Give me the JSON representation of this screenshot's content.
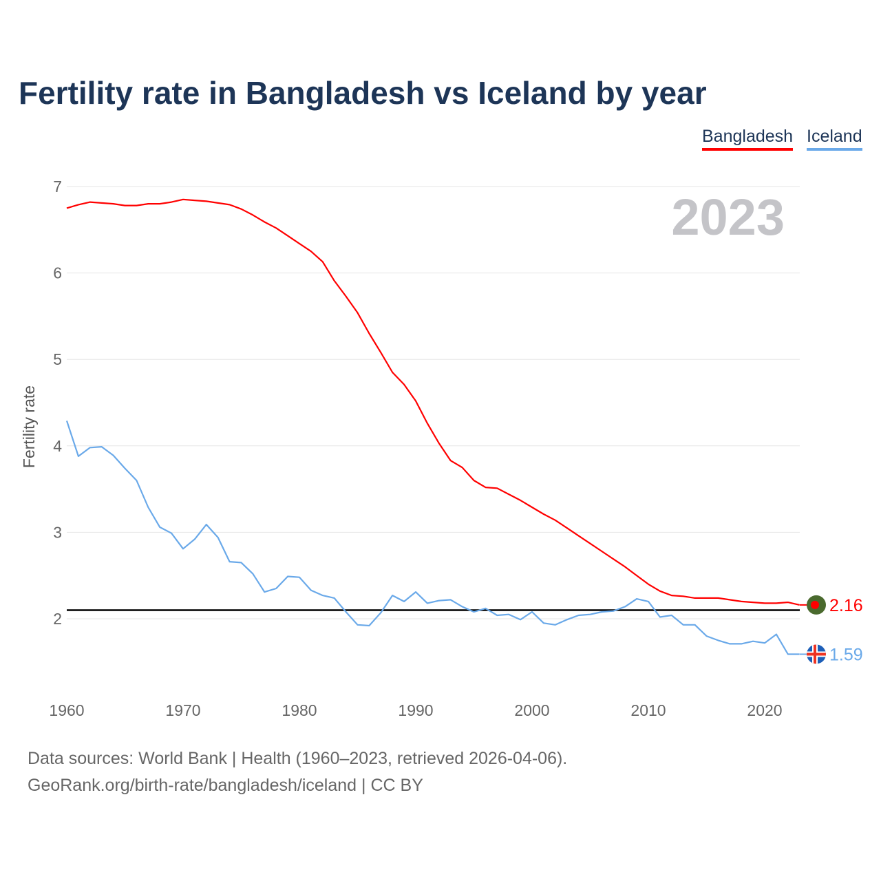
{
  "chart_data": {
    "type": "line",
    "title": "Fertility rate in Bangladesh vs Iceland by year",
    "xlabel": "",
    "ylabel": "Fertility rate",
    "xlim": [
      1960,
      2023
    ],
    "ylim": [
      1.3,
      7.25
    ],
    "x_ticks": [
      1960,
      1970,
      1980,
      1990,
      2000,
      2010,
      2020
    ],
    "y_ticks": [
      2,
      3,
      4,
      5,
      6,
      7
    ],
    "grid": true,
    "legend_position": "top-right",
    "year_label": "2023",
    "reference_line": {
      "value": 2.1,
      "color": "#000000"
    },
    "x": [
      1960,
      1961,
      1962,
      1963,
      1964,
      1965,
      1966,
      1967,
      1968,
      1969,
      1970,
      1971,
      1972,
      1973,
      1974,
      1975,
      1976,
      1977,
      1978,
      1979,
      1980,
      1981,
      1982,
      1983,
      1984,
      1985,
      1986,
      1987,
      1988,
      1989,
      1990,
      1991,
      1992,
      1993,
      1994,
      1995,
      1996,
      1997,
      1998,
      1999,
      2000,
      2001,
      2002,
      2003,
      2004,
      2005,
      2006,
      2007,
      2008,
      2009,
      2010,
      2011,
      2012,
      2013,
      2014,
      2015,
      2016,
      2017,
      2018,
      2019,
      2020,
      2021,
      2022,
      2023
    ],
    "series": [
      {
        "name": "Bangladesh",
        "color": "#ff0000",
        "end_label": "2.16",
        "values": [
          6.75,
          6.79,
          6.82,
          6.81,
          6.8,
          6.78,
          6.78,
          6.8,
          6.8,
          6.82,
          6.85,
          6.84,
          6.83,
          6.81,
          6.79,
          6.74,
          6.67,
          6.59,
          6.52,
          6.43,
          6.34,
          6.25,
          6.13,
          5.91,
          5.73,
          5.54,
          5.3,
          5.08,
          4.85,
          4.71,
          4.52,
          4.26,
          4.03,
          3.83,
          3.75,
          3.6,
          3.52,
          3.51,
          3.44,
          3.37,
          3.29,
          3.21,
          3.14,
          3.05,
          2.96,
          2.87,
          2.78,
          2.69,
          2.6,
          2.5,
          2.4,
          2.32,
          2.27,
          2.26,
          2.24,
          2.24,
          2.24,
          2.22,
          2.2,
          2.19,
          2.18,
          2.18,
          2.19,
          2.16
        ]
      },
      {
        "name": "Iceland",
        "color": "#6aa9e9",
        "end_label": "1.59",
        "values": [
          4.29,
          3.88,
          3.98,
          3.99,
          3.89,
          3.74,
          3.6,
          3.29,
          3.06,
          2.99,
          2.81,
          2.92,
          3.09,
          2.94,
          2.66,
          2.65,
          2.52,
          2.31,
          2.35,
          2.49,
          2.48,
          2.33,
          2.27,
          2.24,
          2.08,
          1.93,
          1.92,
          2.07,
          2.27,
          2.2,
          2.31,
          2.18,
          2.21,
          2.22,
          2.14,
          2.08,
          2.12,
          2.04,
          2.05,
          1.99,
          2.08,
          1.95,
          1.93,
          1.99,
          2.04,
          2.05,
          2.08,
          2.09,
          2.14,
          2.23,
          2.2,
          2.02,
          2.04,
          1.93,
          1.93,
          1.8,
          1.75,
          1.71,
          1.71,
          1.74,
          1.72,
          1.82,
          1.59,
          1.59
        ]
      }
    ]
  },
  "footer": {
    "line1": "Data sources: World Bank | Health (1960–2023, retrieved 2026-04-06).",
    "line2": "GeoRank.org/birth-rate/bangladesh/iceland | CC BY"
  }
}
